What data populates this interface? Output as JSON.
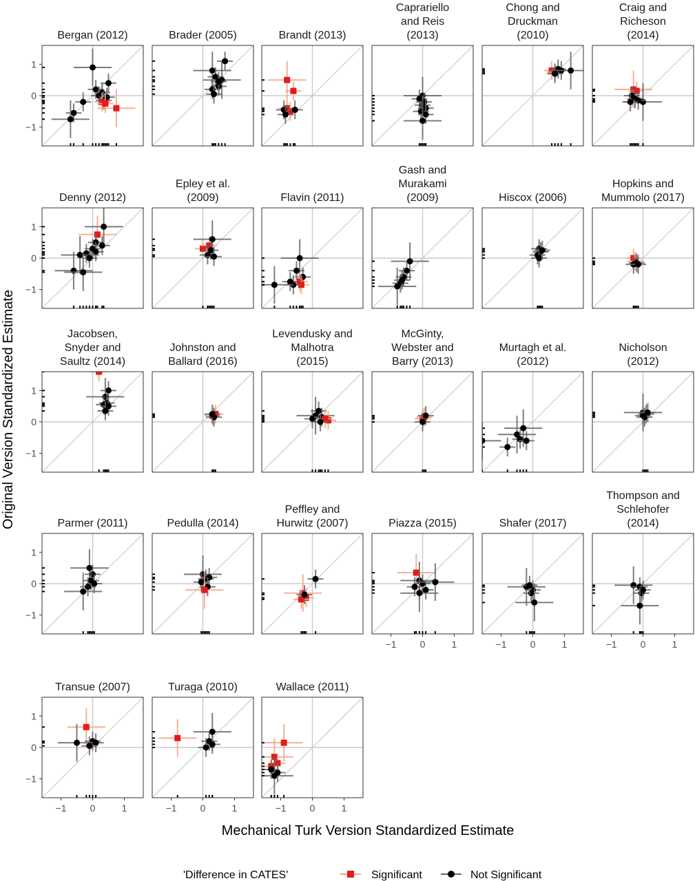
{
  "chart_data": {
    "type": "scatter",
    "xlabel": "Mechanical Turk Version Standardized Estimate",
    "ylabel": "Original Version Standardized Estimate",
    "xlim": [
      -1.6,
      1.6
    ],
    "ylim": [
      -1.6,
      1.6
    ],
    "x_ticks": [
      "-1",
      "0",
      "1"
    ],
    "y_ticks": [
      "1",
      "0",
      "-1"
    ],
    "legend": {
      "title": "'Difference in CATES'",
      "placement": "bottom",
      "entries": [
        {
          "name": "Significant",
          "color": "#e41a1c",
          "marker": "square"
        },
        {
          "name": "Not Significant",
          "color": "#000000",
          "marker": "circle"
        }
      ]
    },
    "panels": [
      {
        "title": [
          "Bergan (2012)"
        ],
        "points": [
          [
            0.0,
            0.9,
            0,
            1
          ],
          [
            0.1,
            0.2,
            0,
            0
          ],
          [
            0.3,
            0.1,
            0,
            0
          ],
          [
            0.2,
            0.0,
            0,
            0
          ],
          [
            0.5,
            0.4,
            0,
            0
          ],
          [
            0.45,
            -0.05,
            0,
            0
          ],
          [
            0.35,
            -0.15,
            0,
            0
          ],
          [
            0.3,
            -0.2,
            1,
            0
          ],
          [
            0.4,
            -0.25,
            1,
            0
          ],
          [
            0.75,
            -0.4,
            1,
            1
          ],
          [
            -0.3,
            -0.2,
            0,
            0
          ],
          [
            -0.6,
            -0.55,
            0,
            0
          ],
          [
            -0.7,
            -0.75,
            0,
            1
          ]
        ]
      },
      {
        "title": [
          "Brader (2005)"
        ],
        "points": [
          [
            0.3,
            0.8,
            0,
            1
          ],
          [
            0.4,
            0.6,
            0,
            0
          ],
          [
            0.6,
            0.5,
            0,
            1
          ],
          [
            0.5,
            0.3,
            0,
            0
          ],
          [
            0.3,
            0.2,
            0,
            0
          ],
          [
            0.7,
            1.1,
            0,
            0
          ],
          [
            0.5,
            0.45,
            0,
            0
          ],
          [
            0.35,
            0.05,
            0,
            0
          ]
        ]
      },
      {
        "title": [
          "Brandt (2013)"
        ],
        "points": [
          [
            -0.8,
            0.5,
            1,
            1
          ],
          [
            -0.6,
            0.15,
            1,
            0
          ],
          [
            -0.8,
            -0.4,
            1,
            0
          ],
          [
            -0.7,
            -0.5,
            1,
            0
          ],
          [
            -0.9,
            -0.45,
            0,
            0
          ],
          [
            -0.55,
            -0.45,
            0,
            0
          ],
          [
            -0.85,
            -0.6,
            0,
            0
          ]
        ]
      },
      {
        "title": [
          "Caprariello",
          "and Reis",
          "(2013)"
        ],
        "points": [
          [
            0.0,
            0.0,
            0,
            1
          ],
          [
            -0.1,
            -0.1,
            0,
            0
          ],
          [
            0.05,
            -0.2,
            0,
            0
          ],
          [
            0.0,
            -0.3,
            0,
            0
          ],
          [
            0.1,
            -0.4,
            0,
            0
          ],
          [
            -0.05,
            -0.5,
            0,
            0
          ],
          [
            0.1,
            -0.6,
            0,
            0
          ],
          [
            0.0,
            -0.8,
            0,
            1
          ]
        ]
      },
      {
        "title": [
          "Chong and",
          "Druckman",
          "(2010)"
        ],
        "points": [
          [
            0.6,
            0.8,
            1,
            0
          ],
          [
            0.7,
            0.75,
            1,
            0
          ],
          [
            0.8,
            0.85,
            0,
            0
          ],
          [
            0.9,
            0.8,
            0,
            0
          ],
          [
            1.2,
            0.8,
            0,
            1
          ],
          [
            0.7,
            0.7,
            0,
            0
          ]
        ]
      },
      {
        "title": [
          "Craig and",
          "Richeson",
          "(2014)"
        ],
        "points": [
          [
            -0.3,
            0.2,
            1,
            1
          ],
          [
            -0.2,
            0.15,
            1,
            0
          ],
          [
            -0.35,
            0.0,
            0,
            0
          ],
          [
            -0.25,
            -0.1,
            0,
            0
          ],
          [
            0.0,
            -0.2,
            0,
            1
          ],
          [
            -0.15,
            -0.15,
            0,
            0
          ],
          [
            -0.4,
            -0.2,
            0,
            0
          ]
        ]
      },
      {
        "title": [
          "Denny (2012)"
        ],
        "points": [
          [
            0.15,
            0.75,
            1,
            1
          ],
          [
            0.35,
            1.0,
            0,
            1
          ],
          [
            0.1,
            0.5,
            0,
            0
          ],
          [
            0.3,
            0.4,
            0,
            0
          ],
          [
            0.0,
            0.3,
            0,
            0
          ],
          [
            0.1,
            0.2,
            0,
            0
          ],
          [
            -0.2,
            0.15,
            0,
            0
          ],
          [
            -0.4,
            0.1,
            0,
            1
          ],
          [
            -0.1,
            0.0,
            0,
            0
          ],
          [
            -0.6,
            -0.4,
            0,
            1
          ],
          [
            -0.3,
            -0.45,
            0,
            1
          ]
        ]
      },
      {
        "title": [
          "Epley et al.",
          "(2009)"
        ],
        "points": [
          [
            0.0,
            0.3,
            1,
            0
          ],
          [
            0.2,
            0.4,
            1,
            0
          ],
          [
            0.3,
            0.6,
            0,
            1
          ],
          [
            0.25,
            0.25,
            0,
            0
          ],
          [
            0.15,
            0.1,
            0,
            0
          ],
          [
            0.35,
            0.05,
            0,
            0
          ]
        ]
      },
      {
        "title": [
          "Flavin (2011)"
        ],
        "points": [
          [
            -0.4,
            0.0,
            0,
            1
          ],
          [
            -0.5,
            -0.4,
            0,
            0
          ],
          [
            -0.3,
            -0.6,
            0,
            0
          ],
          [
            -0.4,
            -0.75,
            1,
            0
          ],
          [
            -0.35,
            -0.85,
            1,
            0
          ],
          [
            -0.6,
            -0.85,
            0,
            0
          ],
          [
            -0.7,
            -0.75,
            0,
            0
          ],
          [
            -1.2,
            -0.85,
            0,
            1
          ]
        ]
      },
      {
        "title": [
          "Gash and",
          "Murakami",
          "(2009)"
        ],
        "points": [
          [
            -0.4,
            -0.1,
            0,
            1
          ],
          [
            -0.5,
            -0.4,
            0,
            0
          ],
          [
            -0.6,
            -0.6,
            0,
            0
          ],
          [
            -0.7,
            -0.8,
            0,
            0
          ],
          [
            -0.8,
            -0.9,
            0,
            1
          ],
          [
            -0.65,
            -0.7,
            0,
            0
          ]
        ]
      },
      {
        "title": [
          "Hiscox (2006)"
        ],
        "points": [
          [
            0.2,
            0.3,
            0,
            0
          ],
          [
            0.25,
            0.2,
            0,
            0
          ],
          [
            0.15,
            0.1,
            0,
            0
          ],
          [
            0.2,
            0.0,
            0,
            0
          ],
          [
            0.3,
            0.25,
            0,
            0
          ]
        ]
      },
      {
        "title": [
          "Hopkins and",
          "Mummolo (2017)"
        ],
        "points": [
          [
            -0.3,
            0.0,
            1,
            0
          ],
          [
            -0.25,
            -0.1,
            1,
            0
          ],
          [
            -0.2,
            -0.15,
            0,
            0
          ],
          [
            -0.3,
            -0.2,
            0,
            0
          ],
          [
            -0.15,
            -0.2,
            0,
            0
          ]
        ]
      },
      {
        "title": [
          "Jacobsen,",
          "Snyder and",
          "Saultz (2014)"
        ],
        "points": [
          [
            0.2,
            1.6,
            1,
            0
          ],
          [
            0.5,
            1.0,
            0,
            0
          ],
          [
            0.4,
            0.8,
            0,
            1
          ],
          [
            0.45,
            0.6,
            0,
            0
          ],
          [
            0.35,
            0.55,
            0,
            0
          ],
          [
            0.5,
            0.5,
            0,
            0
          ],
          [
            0.4,
            0.35,
            0,
            0
          ]
        ]
      },
      {
        "title": [
          "Johnston and",
          "Ballard (2016)"
        ],
        "points": [
          [
            0.3,
            0.2,
            1,
            0
          ],
          [
            0.4,
            0.25,
            1,
            0
          ],
          [
            0.35,
            0.15,
            0,
            0
          ],
          [
            0.3,
            0.25,
            0,
            0
          ]
        ]
      },
      {
        "title": [
          "Levendusky and",
          "Malhotra",
          "(2015)"
        ],
        "points": [
          [
            0.1,
            0.2,
            0,
            1
          ],
          [
            0.2,
            0.35,
            0,
            0
          ],
          [
            0.0,
            0.1,
            0,
            0
          ],
          [
            0.3,
            0.15,
            0,
            0
          ],
          [
            0.5,
            0.05,
            1,
            0
          ],
          [
            0.4,
            0.1,
            1,
            0
          ],
          [
            0.25,
            0.0,
            0,
            0
          ]
        ]
      },
      {
        "title": [
          "McGinty,",
          "Webster and",
          "Barry (2013)"
        ],
        "points": [
          [
            0.0,
            0.1,
            1,
            0
          ],
          [
            0.05,
            0.15,
            1,
            0
          ],
          [
            0.1,
            0.2,
            0,
            0
          ],
          [
            0.0,
            0.0,
            0,
            0
          ]
        ]
      },
      {
        "title": [
          "Murtagh et al.",
          "(2012)"
        ],
        "points": [
          [
            -0.5,
            -0.4,
            0,
            1
          ],
          [
            -0.3,
            -0.2,
            0,
            1
          ],
          [
            -0.4,
            -0.55,
            0,
            0
          ],
          [
            -0.2,
            -0.6,
            0,
            0
          ],
          [
            -0.8,
            -0.8,
            0,
            0
          ],
          [
            -1.6,
            -0.6,
            0,
            1
          ]
        ]
      },
      {
        "title": [
          "Nicholson",
          "(2012)"
        ],
        "points": [
          [
            0.0,
            0.3,
            0,
            1
          ],
          [
            0.1,
            0.25,
            0,
            0
          ],
          [
            0.05,
            0.15,
            0,
            0
          ],
          [
            0.0,
            0.2,
            0,
            0
          ],
          [
            0.15,
            0.3,
            0,
            0
          ]
        ]
      },
      {
        "title": [
          "Parmer (2011)"
        ],
        "points": [
          [
            -0.1,
            0.5,
            0,
            1
          ],
          [
            0.0,
            0.3,
            0,
            0
          ],
          [
            -0.05,
            0.1,
            0,
            0
          ],
          [
            0.05,
            0.0,
            0,
            0
          ],
          [
            -0.15,
            -0.1,
            0,
            0
          ],
          [
            -0.3,
            -0.25,
            0,
            1
          ]
        ]
      },
      {
        "title": [
          "Pedulla (2014)"
        ],
        "points": [
          [
            0.0,
            0.3,
            0,
            1
          ],
          [
            0.1,
            0.15,
            0,
            0
          ],
          [
            -0.05,
            0.05,
            0,
            0
          ],
          [
            0.2,
            0.2,
            0,
            0
          ],
          [
            0.15,
            -0.1,
            0,
            0
          ],
          [
            0.05,
            -0.2,
            1,
            1
          ]
        ]
      },
      {
        "title": [
          "Peffley and",
          "Hurwitz (2007)"
        ],
        "points": [
          [
            -0.3,
            -0.3,
            1,
            1
          ],
          [
            -0.2,
            -0.45,
            1,
            0
          ],
          [
            -0.35,
            -0.5,
            1,
            0
          ],
          [
            0.1,
            0.15,
            0,
            0
          ],
          [
            -0.25,
            -0.35,
            0,
            0
          ]
        ]
      },
      {
        "title": [
          "Piazza (2015)"
        ],
        "points": [
          [
            -0.2,
            0.35,
            1,
            1
          ],
          [
            -0.1,
            0.1,
            0,
            1
          ],
          [
            0.0,
            0.0,
            0,
            0
          ],
          [
            0.4,
            0.05,
            0,
            1
          ],
          [
            -0.25,
            -0.1,
            0,
            0
          ],
          [
            0.1,
            -0.2,
            0,
            0
          ],
          [
            -0.1,
            -0.3,
            0,
            1
          ]
        ]
      },
      {
        "title": [
          "Shafer (2017)"
        ],
        "points": [
          [
            -0.2,
            -0.1,
            0,
            1
          ],
          [
            0.0,
            -0.2,
            0,
            0
          ],
          [
            -0.05,
            -0.3,
            0,
            0
          ],
          [
            0.05,
            -0.6,
            0,
            1
          ],
          [
            -0.1,
            -0.05,
            0,
            0
          ]
        ]
      },
      {
        "title": [
          "Thompson and",
          "Schlehofer",
          "(2014)"
        ],
        "points": [
          [
            -0.3,
            -0.05,
            0,
            1
          ],
          [
            -0.1,
            -0.1,
            0,
            0
          ],
          [
            -0.05,
            -0.3,
            0,
            0
          ],
          [
            0.0,
            -0.2,
            0,
            0
          ],
          [
            -0.1,
            -0.7,
            0,
            1
          ]
        ]
      },
      {
        "title": [
          "Transue (2007)"
        ],
        "points": [
          [
            -0.2,
            0.65,
            1,
            1
          ],
          [
            0.0,
            0.2,
            0,
            0
          ],
          [
            -0.5,
            0.15,
            0,
            1
          ],
          [
            0.1,
            0.15,
            0,
            0
          ],
          [
            -0.1,
            0.05,
            0,
            0
          ]
        ]
      },
      {
        "title": [
          "Turaga (2010)"
        ],
        "points": [
          [
            -0.8,
            0.3,
            1,
            1
          ],
          [
            0.3,
            0.5,
            0,
            1
          ],
          [
            0.2,
            0.2,
            0,
            0
          ],
          [
            0.1,
            0.0,
            0,
            0
          ],
          [
            0.3,
            0.1,
            0,
            0
          ]
        ]
      },
      {
        "title": [
          "Wallace (2011)"
        ],
        "points": [
          [
            -0.9,
            0.15,
            1,
            1
          ],
          [
            -1.2,
            -0.3,
            1,
            1
          ],
          [
            -1.1,
            -0.5,
            1,
            0
          ],
          [
            -1.3,
            -0.6,
            1,
            0
          ],
          [
            -1.2,
            -0.9,
            0,
            1
          ],
          [
            -1.1,
            -0.8,
            0,
            0
          ],
          [
            -1.3,
            -0.7,
            0,
            0
          ]
        ]
      }
    ]
  }
}
